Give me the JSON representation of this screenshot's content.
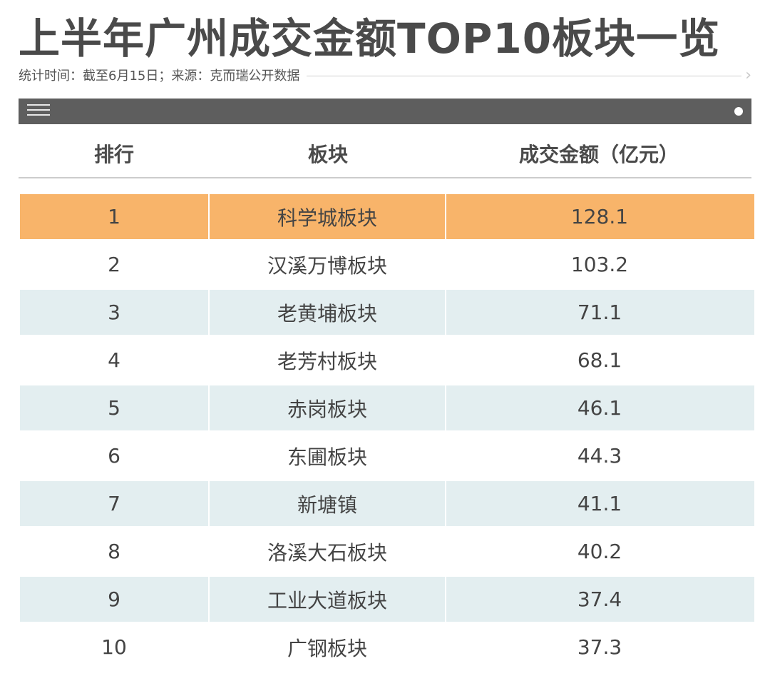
{
  "title": "上半年广州成交金额TOP10板块一览",
  "subtitle": "统计时间：截至6月15日；来源：克而瑞公开数据",
  "table": {
    "headers": [
      "排行",
      "板块",
      "成交金额（亿元）"
    ],
    "rows": [
      {
        "rank": "1",
        "area": "科学城板块",
        "amount": "128.1"
      },
      {
        "rank": "2",
        "area": "汉溪万博板块",
        "amount": "103.2"
      },
      {
        "rank": "3",
        "area": "老黄埔板块",
        "amount": "71.1"
      },
      {
        "rank": "4",
        "area": "老芳村板块",
        "amount": "68.1"
      },
      {
        "rank": "5",
        "area": "赤岗板块",
        "amount": "46.1"
      },
      {
        "rank": "6",
        "area": "东圃板块",
        "amount": "44.3"
      },
      {
        "rank": "7",
        "area": "新塘镇",
        "amount": "41.1"
      },
      {
        "rank": "8",
        "area": "洛溪大石板块",
        "amount": "40.2"
      },
      {
        "rank": "9",
        "area": "工业大道板块",
        "amount": "37.4"
      },
      {
        "rank": "10",
        "area": "广钢板块",
        "amount": "37.3"
      }
    ]
  },
  "colors": {
    "highlight_row": "#f8b46a",
    "alt_row": "#e3eef0",
    "top_bar": "#5e5e5e"
  },
  "icons": {
    "menu": "menu-icon",
    "dot": "dot-icon",
    "arrow": "chevron-right-icon"
  }
}
